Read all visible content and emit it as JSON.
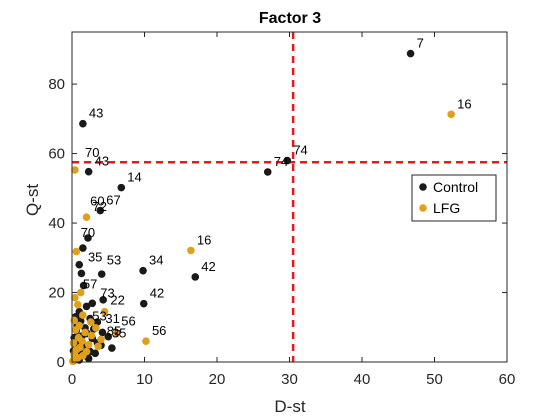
{
  "chart_data": {
    "type": "scatter",
    "title": "Factor 3",
    "xlabel": "D-st",
    "ylabel": "Q-st",
    "xlim": [
      0,
      60
    ],
    "ylim": [
      0,
      95
    ],
    "xticks": [
      0,
      10,
      20,
      30,
      40,
      50,
      60
    ],
    "yticks": [
      0,
      20,
      40,
      60,
      80
    ],
    "grid": false,
    "legend_position": "right",
    "threshold_lines": {
      "x": 30.5,
      "y": 57.5,
      "color": "#e41a1c"
    },
    "series": [
      {
        "name": "Control",
        "color": "#1a1a1a",
        "points": [
          {
            "x": 46.7,
            "y": 88.8,
            "label": "7"
          },
          {
            "x": 29.7,
            "y": 58.0,
            "label": "74"
          },
          {
            "x": 27.0,
            "y": 54.7,
            "label": "74"
          },
          {
            "x": 1.5,
            "y": 68.6,
            "label": "43"
          },
          {
            "x": 2.3,
            "y": 54.8,
            "label": "43"
          },
          {
            "x": 6.8,
            "y": 50.2,
            "label": "14"
          },
          {
            "x": 3.9,
            "y": 43.6,
            "label": "67"
          },
          {
            "x": 9.8,
            "y": 26.3,
            "label": "34"
          },
          {
            "x": 17.0,
            "y": 24.5,
            "label": "42"
          },
          {
            "x": 9.9,
            "y": 16.8,
            "label": "42"
          },
          {
            "x": 2.2,
            "y": 35.7,
            "label": ""
          },
          {
            "x": 1.5,
            "y": 32.8,
            "label": ""
          },
          {
            "x": 4.1,
            "y": 25.3,
            "label": ""
          },
          {
            "x": 1.0,
            "y": 28.0,
            "label": ""
          },
          {
            "x": 1.3,
            "y": 25.5,
            "label": ""
          },
          {
            "x": 1.6,
            "y": 22.0,
            "label": ""
          },
          {
            "x": 4.3,
            "y": 17.9,
            "label": ""
          },
          {
            "x": 2.8,
            "y": 16.9,
            "label": ""
          },
          {
            "x": 2.0,
            "y": 16.0,
            "label": ""
          },
          {
            "x": 1.0,
            "y": 14.5,
            "label": ""
          },
          {
            "x": 0.5,
            "y": 13.0,
            "label": ""
          },
          {
            "x": 2.5,
            "y": 12.5,
            "label": ""
          },
          {
            "x": 3.5,
            "y": 11.5,
            "label": ""
          },
          {
            "x": 1.2,
            "y": 11.8,
            "label": ""
          },
          {
            "x": 0.7,
            "y": 10.5,
            "label": ""
          },
          {
            "x": 1.8,
            "y": 9.8,
            "label": ""
          },
          {
            "x": 3.0,
            "y": 9.5,
            "label": ""
          },
          {
            "x": 0.6,
            "y": 9.0,
            "label": ""
          },
          {
            "x": 2.1,
            "y": 8.2,
            "label": ""
          },
          {
            "x": 4.2,
            "y": 8.5,
            "label": ""
          },
          {
            "x": 1.4,
            "y": 7.5,
            "label": ""
          },
          {
            "x": 0.3,
            "y": 7.0,
            "label": ""
          },
          {
            "x": 2.8,
            "y": 6.8,
            "label": ""
          },
          {
            "x": 5.0,
            "y": 7.3,
            "label": ""
          },
          {
            "x": 1.0,
            "y": 6.0,
            "label": ""
          },
          {
            "x": 3.5,
            "y": 5.5,
            "label": ""
          },
          {
            "x": 0.5,
            "y": 5.0,
            "label": ""
          },
          {
            "x": 2.0,
            "y": 4.5,
            "label": ""
          },
          {
            "x": 4.0,
            "y": 4.8,
            "label": ""
          },
          {
            "x": 5.5,
            "y": 4.0,
            "label": ""
          },
          {
            "x": 1.3,
            "y": 3.8,
            "label": ""
          },
          {
            "x": 0.2,
            "y": 3.2,
            "label": ""
          },
          {
            "x": 2.5,
            "y": 3.0,
            "label": ""
          },
          {
            "x": 3.2,
            "y": 2.5,
            "label": ""
          },
          {
            "x": 0.8,
            "y": 2.2,
            "label": ""
          },
          {
            "x": 1.7,
            "y": 1.8,
            "label": ""
          },
          {
            "x": 0.4,
            "y": 1.2,
            "label": ""
          },
          {
            "x": 2.3,
            "y": 1.0,
            "label": ""
          },
          {
            "x": 1.0,
            "y": 0.6,
            "label": ""
          },
          {
            "x": 0.2,
            "y": 0.3,
            "label": ""
          }
        ]
      },
      {
        "name": "LFG",
        "color": "#e0a01b",
        "points": [
          {
            "x": 52.3,
            "y": 71.3,
            "label": "16"
          },
          {
            "x": 0.4,
            "y": 55.3,
            "label": ""
          },
          {
            "x": 2.0,
            "y": 41.7,
            "label": "72"
          },
          {
            "x": 16.4,
            "y": 32.1,
            "label": "16"
          },
          {
            "x": 0.6,
            "y": 31.8,
            "label": ""
          },
          {
            "x": 1.2,
            "y": 20.0,
            "label": ""
          },
          {
            "x": 0.4,
            "y": 18.5,
            "label": ""
          },
          {
            "x": 0.8,
            "y": 16.5,
            "label": ""
          },
          {
            "x": 4.5,
            "y": 14.5,
            "label": ""
          },
          {
            "x": 1.5,
            "y": 13.5,
            "label": ""
          },
          {
            "x": 0.3,
            "y": 12.0,
            "label": ""
          },
          {
            "x": 2.6,
            "y": 11.5,
            "label": ""
          },
          {
            "x": 1.0,
            "y": 10.5,
            "label": ""
          },
          {
            "x": 3.3,
            "y": 9.8,
            "label": ""
          },
          {
            "x": 0.5,
            "y": 9.2,
            "label": ""
          },
          {
            "x": 1.8,
            "y": 8.5,
            "label": ""
          },
          {
            "x": 6.2,
            "y": 8.3,
            "label": ""
          },
          {
            "x": 2.7,
            "y": 7.6,
            "label": ""
          },
          {
            "x": 0.9,
            "y": 7.0,
            "label": ""
          },
          {
            "x": 4.0,
            "y": 6.5,
            "label": ""
          },
          {
            "x": 1.4,
            "y": 6.0,
            "label": ""
          },
          {
            "x": 10.2,
            "y": 6.0,
            "label": "56"
          },
          {
            "x": 0.2,
            "y": 5.5,
            "label": ""
          },
          {
            "x": 2.3,
            "y": 5.0,
            "label": ""
          },
          {
            "x": 3.6,
            "y": 4.5,
            "label": ""
          },
          {
            "x": 1.1,
            "y": 4.2,
            "label": ""
          },
          {
            "x": 0.6,
            "y": 3.5,
            "label": ""
          },
          {
            "x": 2.0,
            "y": 3.0,
            "label": ""
          },
          {
            "x": 0.3,
            "y": 2.3,
            "label": ""
          },
          {
            "x": 1.5,
            "y": 1.8,
            "label": ""
          },
          {
            "x": 0.8,
            "y": 1.2,
            "label": ""
          },
          {
            "x": 0.3,
            "y": 0.7,
            "label": ""
          },
          {
            "x": 0.1,
            "y": 0.2,
            "label": ""
          }
        ]
      }
    ],
    "annotations": [
      {
        "text": "70",
        "x": 1.8,
        "y": 59.0
      },
      {
        "text": "60",
        "x": 2.5,
        "y": 45.0
      },
      {
        "text": "70",
        "x": 1.2,
        "y": 36.0
      },
      {
        "text": "35",
        "x": 2.2,
        "y": 29.0
      },
      {
        "text": "53",
        "x": 4.8,
        "y": 28.0
      },
      {
        "text": "57",
        "x": 1.5,
        "y": 21.2
      },
      {
        "text": "73",
        "x": 3.9,
        "y": 18.5
      },
      {
        "text": "22",
        "x": 5.3,
        "y": 16.5
      },
      {
        "text": "53",
        "x": 2.8,
        "y": 12.0
      },
      {
        "text": "31",
        "x": 4.6,
        "y": 11.2
      },
      {
        "text": "56",
        "x": 6.8,
        "y": 10.5
      },
      {
        "text": "85",
        "x": 4.8,
        "y": 7.6
      },
      {
        "text": "35",
        "x": 5.5,
        "y": 7.0
      }
    ]
  }
}
